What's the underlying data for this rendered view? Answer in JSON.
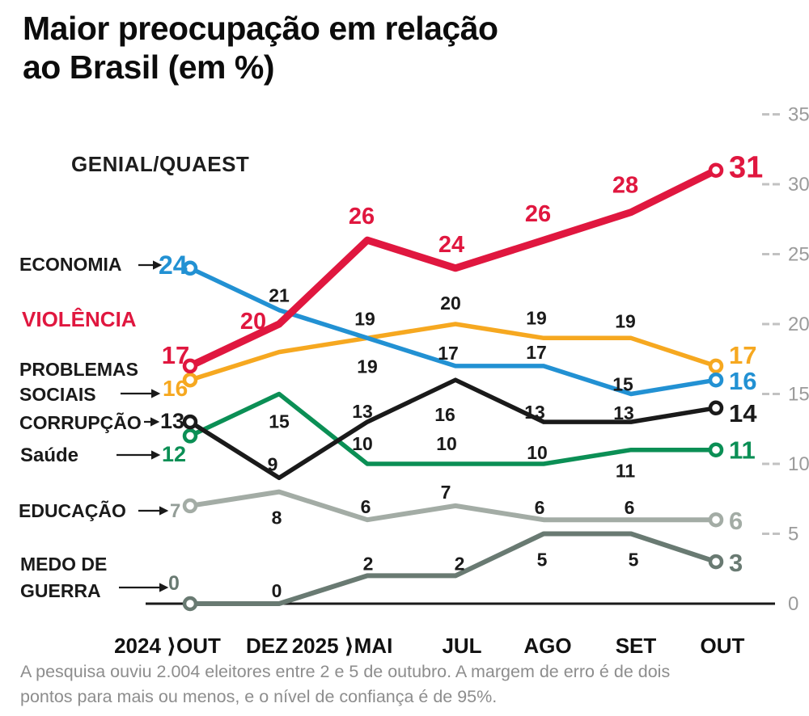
{
  "title": {
    "line1": "Maior preocupação em relação",
    "line2": "ao Brasil (em %)"
  },
  "source_label": "GENIAL/QUAEST",
  "footer": {
    "line1": "A pesquisa ouviu 2.004 eleitores entre 2 e 5 de outubro. A margem de erro é de dois",
    "line2": "pontos para mais ou menos, e o nível de confiança é de 95%."
  },
  "chart_data": {
    "type": "line",
    "title": "Maior preocupação em relação ao Brasil (em %)",
    "source": "GENIAL/QUAEST",
    "x_categories": [
      "2024 ⟩OUT",
      "DEZ",
      "2025 ⟩MAI",
      "JUL",
      "AGO",
      "SET",
      "OUT"
    ],
    "ylim": [
      0,
      35
    ],
    "yticks": [
      0,
      5,
      10,
      15,
      20,
      25,
      30,
      35
    ],
    "grid": false,
    "legend_position": "left",
    "series": [
      {
        "id": "economia",
        "name_lines": [
          "ECONOMIA"
        ],
        "color": "#2291d3",
        "values": [
          24,
          21,
          19,
          17,
          17,
          15,
          16
        ],
        "labels": [
          "24",
          "21",
          "19",
          "17",
          "17",
          "15",
          "16"
        ]
      },
      {
        "id": "violencia",
        "name_lines": [
          "VIOLÊNCIA"
        ],
        "color": "#e0173f",
        "values": [
          17,
          20,
          26,
          24,
          26,
          28,
          31
        ],
        "labels": [
          "17",
          "20",
          "26",
          "24",
          "26",
          "28",
          "31"
        ]
      },
      {
        "id": "problemas-sociais",
        "name_lines": [
          "PROBLEMAS",
          "SOCIAIS"
        ],
        "color": "#f6a820",
        "values": [
          16,
          18,
          19,
          20,
          19,
          19,
          17
        ],
        "labels": [
          "16",
          null,
          "19",
          "20",
          "19",
          "19",
          "17"
        ]
      },
      {
        "id": "corrupcao",
        "name_lines": [
          "CORRUPÇÃO"
        ],
        "color": "#1a1a1a",
        "values": [
          13,
          9,
          13,
          16,
          13,
          13,
          14
        ],
        "labels": [
          "13",
          "9",
          "13",
          "16",
          "13",
          "13",
          "14"
        ]
      },
      {
        "id": "saude",
        "name_lines": [
          "Saúde"
        ],
        "color": "#0b8f55",
        "values": [
          12,
          15,
          10,
          10,
          10,
          11,
          11
        ],
        "labels": [
          "12",
          "15",
          "10",
          "10",
          "10",
          "11",
          "11"
        ]
      },
      {
        "id": "educacao",
        "name_lines": [
          "EDUCAÇÃO"
        ],
        "color": "#a3aca5",
        "values": [
          7,
          8,
          6,
          7,
          6,
          6,
          6
        ],
        "labels": [
          "7",
          "8",
          "6",
          "7",
          "6",
          "6",
          "6"
        ]
      },
      {
        "id": "medo-de-guerra",
        "name_lines": [
          "MEDO DE",
          "GUERRA"
        ],
        "color": "#697a72",
        "values": [
          0,
          0,
          2,
          2,
          5,
          5,
          3
        ],
        "labels": [
          "0",
          "0",
          "2",
          "2",
          "5",
          "5",
          "3"
        ]
      }
    ]
  }
}
